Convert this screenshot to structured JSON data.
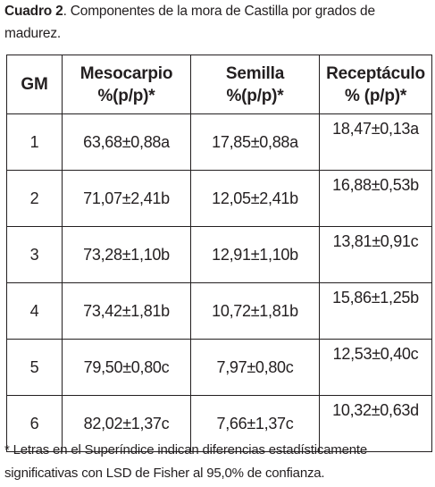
{
  "caption": {
    "label": "Cuadro 2",
    "text": ". Componentes de la mora de Castilla por grados de madurez."
  },
  "table": {
    "headers": {
      "gm": "GM",
      "meso_line1": "Mesocarpio",
      "meso_line2": "%(p/p)*",
      "sem_line1": "Semilla",
      "sem_line2": "%(p/p)*",
      "rec_line1": "Receptáculo",
      "rec_line2": "% (p/p)*"
    },
    "rows": [
      {
        "gm": "1",
        "mesocarpio": "63,68±0,88a",
        "semilla": "17,85±0,88a",
        "receptaculo": "18,47±0,13a"
      },
      {
        "gm": "2",
        "mesocarpio": "71,07±2,41b",
        "semilla": "12,05±2,41b",
        "receptaculo": "16,88±0,53b"
      },
      {
        "gm": "3",
        "mesocarpio": "73,28±1,10b",
        "semilla": "12,91±1,10b",
        "receptaculo": "13,81±0,91c"
      },
      {
        "gm": "4",
        "mesocarpio": "73,42±1,81b",
        "semilla": "10,72±1,81b",
        "receptaculo": "15,86±1,25b"
      },
      {
        "gm": "5",
        "mesocarpio": "79,50±0,80c",
        "semilla": "7,97±0,80c",
        "receptaculo": "12,53±0,40c"
      },
      {
        "gm": "6",
        "mesocarpio": "82,02±1,37c",
        "semilla": "7,66±1,37c",
        "receptaculo": "10,32±0,63d"
      }
    ]
  },
  "footnote": "* Letras en el Superíndice indican diferencias estadísticamente significativas con LSD de Fisher al 95,0% de confianza."
}
